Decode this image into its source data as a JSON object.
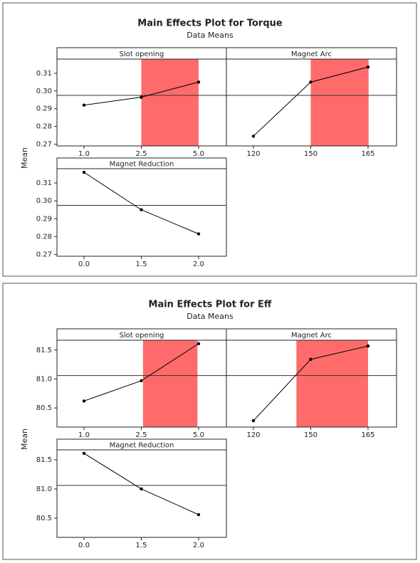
{
  "chart_data": [
    {
      "type": "main-effects",
      "title": "Main Effects Plot for Torque",
      "subtitle": "Data Means",
      "y_label": "Mean",
      "ylim": [
        0.269,
        0.318
      ],
      "yticks": [
        0.27,
        0.28,
        0.29,
        {
          "value": 0.3,
          "label": "0.30"
        },
        0.31
      ],
      "mean": 0.2975,
      "color": "#000000",
      "highlight_color": "#ff6b6b",
      "panels": [
        {
          "name": "Slot opening",
          "categories": [
            "1.0",
            "2.5",
            "5.0"
          ],
          "values": [
            0.292,
            0.2965,
            0.305
          ]
        },
        {
          "name": "Magnet Arc",
          "categories": [
            "120",
            "150",
            "165"
          ],
          "values": [
            0.2745,
            0.305,
            0.3135
          ]
        },
        {
          "name": "Magnet Reduction",
          "categories": [
            "0.0",
            "1.5",
            "2.0"
          ],
          "values": [
            0.316,
            0.295,
            0.2815
          ]
        }
      ]
    },
    {
      "type": "main-effects",
      "title": "Main Effects Plot for Eff",
      "subtitle": "Data Means",
      "y_label": "Mean",
      "ylim": [
        80.17,
        81.67
      ],
      "yticks": [
        80.5,
        {
          "value": 81,
          "label": "81.0"
        },
        81.5
      ],
      "mean": 81.06,
      "color": "#000000",
      "highlight_color": "#ff6b6b",
      "panels": [
        {
          "name": "Slot opening",
          "categories": [
            "1.0",
            "2.5",
            "5.0"
          ],
          "values": [
            80.62,
            80.97,
            81.61
          ]
        },
        {
          "name": "Magnet Arc",
          "categories": [
            "120",
            "150",
            "165"
          ],
          "values": [
            80.28,
            81.34,
            81.57
          ]
        },
        {
          "name": "Magnet Reduction",
          "categories": [
            "0.0",
            "1.5",
            "2.0"
          ],
          "values": [
            81.61,
            81.0,
            80.56
          ]
        }
      ]
    }
  ]
}
